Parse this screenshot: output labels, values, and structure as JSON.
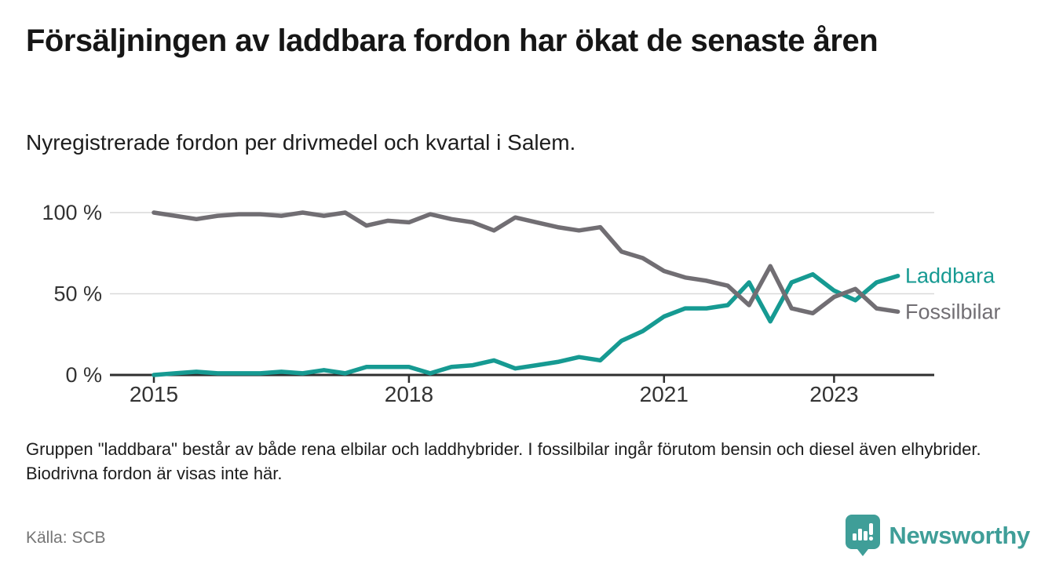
{
  "header": {
    "title": "Försäljningen av laddbara fordon har ökat de senaste åren",
    "subtitle": "Nyregistrerade fordon per drivmedel och kvartal i Salem."
  },
  "chart_data": {
    "type": "line",
    "title": "Försäljningen av laddbara fordon har ökat de senaste åren",
    "subtitle": "Nyregistrerade fordon per drivmedel och kvartal i Salem.",
    "x_type": "quarterly",
    "categories": [
      "2015 Q1",
      "2015 Q2",
      "2015 Q3",
      "2015 Q4",
      "2016 Q1",
      "2016 Q2",
      "2016 Q3",
      "2016 Q4",
      "2017 Q1",
      "2017 Q2",
      "2017 Q3",
      "2017 Q4",
      "2018 Q1",
      "2018 Q2",
      "2018 Q3",
      "2018 Q4",
      "2019 Q1",
      "2019 Q2",
      "2019 Q3",
      "2019 Q4",
      "2020 Q1",
      "2020 Q2",
      "2020 Q3",
      "2020 Q4",
      "2021 Q1",
      "2021 Q2",
      "2021 Q3",
      "2021 Q4",
      "2022 Q1",
      "2022 Q2",
      "2022 Q3",
      "2022 Q4",
      "2023 Q1",
      "2023 Q2",
      "2023 Q3",
      "2023 Q4"
    ],
    "series": [
      {
        "name": "Laddbara",
        "color": "#169a92",
        "values": [
          0,
          1,
          2,
          1,
          1,
          1,
          2,
          1,
          3,
          1,
          5,
          5,
          5,
          1,
          5,
          6,
          9,
          4,
          6,
          8,
          11,
          9,
          21,
          27,
          36,
          41,
          41,
          43,
          57,
          33,
          57,
          62,
          52,
          46,
          57,
          61
        ]
      },
      {
        "name": "Fossilbilar",
        "color": "#716e73",
        "values": [
          100,
          98,
          96,
          98,
          99,
          99,
          98,
          100,
          98,
          100,
          92,
          95,
          94,
          99,
          96,
          94,
          89,
          97,
          94,
          91,
          89,
          91,
          76,
          72,
          64,
          60,
          58,
          55,
          43,
          67,
          41,
          38,
          48,
          53,
          41,
          39
        ]
      }
    ],
    "x_ticks": [
      {
        "year": 2015,
        "label": "2015"
      },
      {
        "year": 2018,
        "label": "2018"
      },
      {
        "year": 2021,
        "label": "2021"
      },
      {
        "year": 2023,
        "label": "2023"
      }
    ],
    "y_ticks": [
      {
        "value": 0,
        "label": "0 %"
      },
      {
        "value": 50,
        "label": "50 %"
      },
      {
        "value": 100,
        "label": "100 %"
      }
    ],
    "ylim": [
      0,
      100
    ],
    "grid": "horizontal",
    "legend_position": "line-end-labels"
  },
  "footnote": "Gruppen \"laddbara\" består av både rena elbilar och laddhybrider. I fossilbilar ingår förutom bensin och diesel även elhybrider. Biodrivna fordon är visas inte här.",
  "footer": {
    "source": "Källa: SCB",
    "brand": "Newsworthy",
    "logo_icon": "newsworthy-pin-chart-icon"
  },
  "colors": {
    "laddbara": "#169a92",
    "fossilbilar": "#716e73",
    "gridline": "#d9d9d9",
    "axis": "#2f2f2f",
    "tick_label": "#333333",
    "brand_teal": "#3f9e98"
  }
}
